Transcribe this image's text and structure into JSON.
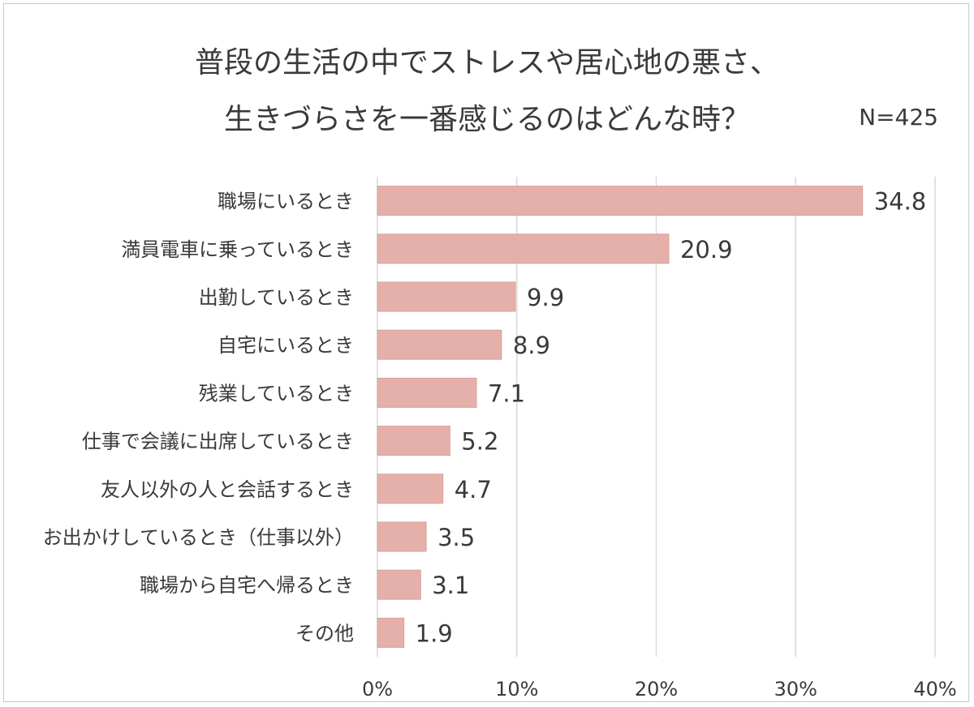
{
  "chart_data": {
    "type": "bar",
    "orientation": "horizontal",
    "title": "普段の生活の中でストレスや居心地の悪さ、",
    "subtitle": "生きづらさを一番感じるのはどんな時？",
    "note": "N=425",
    "categories": [
      "職場にいるとき",
      "満員電車に乗っているとき",
      "出勤しているとき",
      "自宅にいるとき",
      "残業しているとき",
      "仕事で会議に出席しているとき",
      "友人以外の人と会話するとき",
      "お出かけしているとき（仕事以外）",
      "職場から自宅へ帰るとき",
      "その他"
    ],
    "values": [
      34.8,
      20.9,
      9.9,
      8.9,
      7.1,
      5.2,
      4.7,
      3.5,
      3.1,
      1.9
    ],
    "value_labels": [
      "34.8",
      "20.9",
      "9.9",
      "8.9",
      "7.1",
      "5.2",
      "4.7",
      "3.5",
      "3.1",
      "1.9"
    ],
    "xlim": [
      0,
      40
    ],
    "xticks": [
      0,
      10,
      20,
      30,
      40
    ],
    "xtick_labels": [
      "0%",
      "10%",
      "20%",
      "30%",
      "40%"
    ],
    "grid": true,
    "legend": "none",
    "colors": {
      "bar": "#e6b0aa",
      "bar_stroke": "#d9a099",
      "grid": "#d9d9d9",
      "text": "#3a3a3a"
    }
  }
}
